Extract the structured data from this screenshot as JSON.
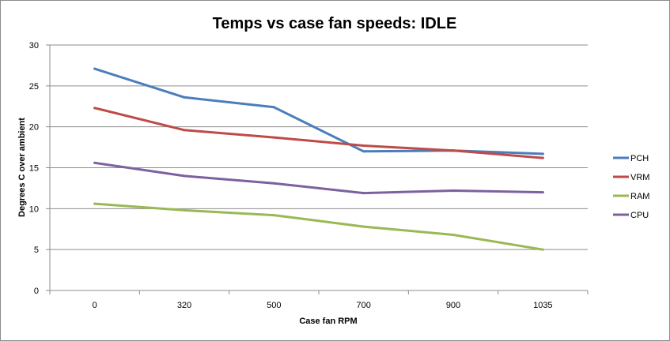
{
  "chart_data": {
    "type": "line",
    "title": "Temps vs case fan speeds: IDLE",
    "xlabel": "Case fan RPM",
    "ylabel": "Degrees C over ambient",
    "categories": [
      "0",
      "320",
      "500",
      "700",
      "900",
      "1035"
    ],
    "ylim": [
      0,
      30
    ],
    "yticks": [
      "0",
      "5",
      "10",
      "15",
      "20",
      "25",
      "30"
    ],
    "grid": true,
    "legend_position": "right",
    "series": [
      {
        "name": "PCH",
        "color": "#4a7ebb",
        "values": [
          27.1,
          23.6,
          22.4,
          17.0,
          17.1,
          16.7
        ]
      },
      {
        "name": "VRM",
        "color": "#be4b48",
        "values": [
          22.3,
          19.6,
          18.7,
          17.7,
          17.1,
          16.2
        ]
      },
      {
        "name": "RAM",
        "color": "#98b954",
        "values": [
          10.6,
          9.8,
          9.2,
          7.8,
          6.8,
          5.0
        ]
      },
      {
        "name": "CPU",
        "color": "#7d60a0",
        "values": [
          15.6,
          14.0,
          13.1,
          11.9,
          12.2,
          12.0
        ]
      }
    ]
  }
}
